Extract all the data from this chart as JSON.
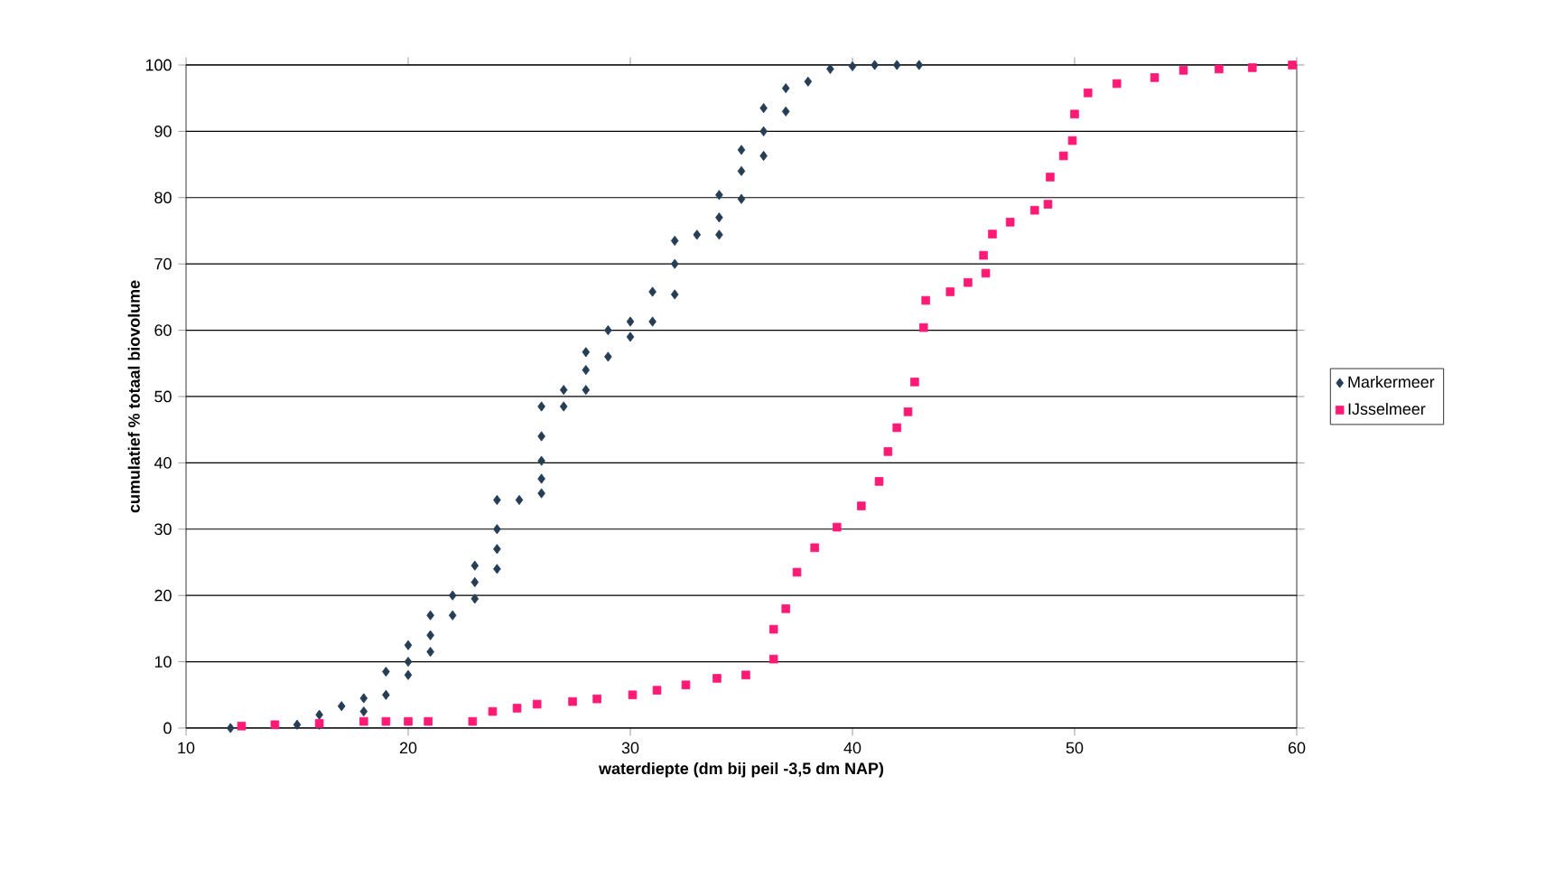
{
  "chart_data": {
    "type": "scatter",
    "xlabel": "waterdiepte (dm bij peil -3,5 dm NAP)",
    "ylabel": "cumulatief % totaal biovolume",
    "xlim": [
      10,
      60
    ],
    "ylim": [
      0,
      100
    ],
    "xticks": [
      10,
      20,
      30,
      40,
      50,
      60
    ],
    "yticks": [
      0,
      10,
      20,
      30,
      40,
      50,
      60,
      70,
      80,
      90,
      100
    ],
    "grid": "y",
    "legend": "right",
    "series": [
      {
        "name": "Markermeer",
        "color": "#263e55",
        "marker": "diamond",
        "x": [
          12,
          15,
          16,
          16,
          17,
          18,
          18,
          19,
          19,
          20,
          20,
          20,
          21,
          21,
          21,
          22,
          22,
          23,
          23,
          23,
          24,
          24,
          24,
          24,
          25,
          26,
          26,
          26,
          26,
          26,
          27,
          27,
          28,
          28,
          28,
          29,
          29,
          30,
          30,
          31,
          31,
          32,
          32,
          32,
          33,
          34,
          34,
          34,
          35,
          35,
          35,
          36,
          36,
          36,
          37,
          37,
          38,
          39,
          40,
          41,
          42,
          43
        ],
        "values": [
          0,
          0.5,
          0.5,
          2,
          3.3,
          2.5,
          4.5,
          5,
          8.5,
          8,
          10,
          12.5,
          11.5,
          14,
          17,
          17,
          20,
          19.5,
          22,
          24.5,
          24,
          27,
          30,
          34.4,
          34.4,
          35.4,
          37.6,
          40.3,
          44,
          48.5,
          48.5,
          51,
          51,
          54,
          56.7,
          56,
          60,
          59,
          61.3,
          61.3,
          65.8,
          65.4,
          70,
          73.5,
          74.4,
          74.4,
          77,
          80.4,
          79.8,
          84,
          87.2,
          86.3,
          90,
          93.5,
          93,
          96.5,
          97.5,
          99.4,
          99.8,
          100,
          100,
          100
        ]
      },
      {
        "name": "IJsselmeer",
        "color": "#ff1a75",
        "marker": "square",
        "x": [
          12.5,
          14,
          16,
          18,
          19,
          20,
          20.9,
          22.9,
          23.8,
          24.9,
          25.8,
          27.4,
          28.5,
          30.1,
          31.2,
          32.5,
          33.9,
          35.2,
          36.45,
          36.45,
          37.0,
          37.5,
          38.3,
          39.3,
          40.4,
          41.2,
          41.6,
          42.0,
          42.5,
          42.8,
          43.2,
          43.3,
          44.4,
          45.2,
          46.0,
          45.9,
          46.3,
          47.1,
          48.2,
          48.8,
          48.9,
          49.5,
          49.9,
          50.0,
          50.6,
          51.9,
          53.6,
          54.9,
          56.5,
          58.0,
          59.8
        ],
        "values": [
          0.3,
          0.5,
          0.7,
          1,
          1,
          1,
          1,
          1,
          2.5,
          3,
          3.6,
          4,
          4.4,
          5,
          5.7,
          6.5,
          7.5,
          8,
          10.4,
          14.9,
          18,
          23.5,
          27.2,
          30.3,
          33.5,
          37.2,
          41.7,
          45.3,
          47.7,
          52.2,
          60.4,
          64.5,
          65.8,
          67.2,
          68.6,
          71.3,
          74.5,
          76.3,
          78.1,
          79,
          83.1,
          86.3,
          88.6,
          92.6,
          95.8,
          97.2,
          98.1,
          99.2,
          99.4,
          99.6,
          100
        ]
      }
    ]
  }
}
